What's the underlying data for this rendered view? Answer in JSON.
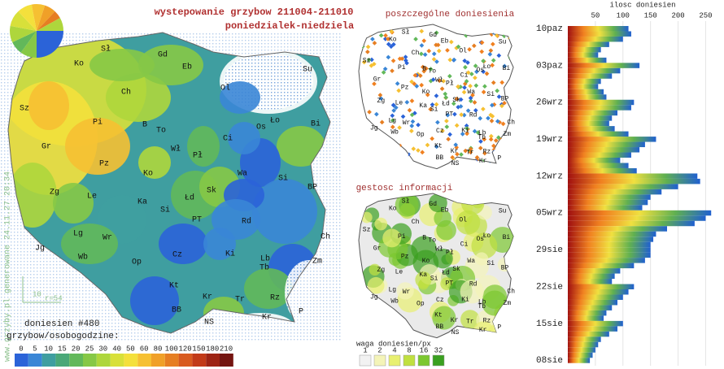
{
  "title": "wystepowanie grzybow 211004-211010",
  "subtitle": "poniedzialek-niedziela",
  "map": {
    "labels": [
      "Sł",
      "Gd",
      "Ko",
      "Eb",
      "Su",
      "Ch",
      "Ol",
      "Sz",
      "Pi",
      "B",
      "To",
      "Ło",
      "Bi",
      "Os",
      "Gr",
      "Wł",
      "Pł",
      "Ci",
      "Pz",
      "Ko",
      "Wa",
      "Si",
      "Zg",
      "Le",
      "Ka",
      "Łd",
      "Sk",
      "BP",
      "Si",
      "PT",
      "Rd",
      "Jg",
      "Lg",
      "Wr",
      "Ch",
      "Wb",
      "Op",
      "Cz",
      "Ki",
      "Zm",
      "Lb",
      "Kt",
      "Tb",
      "Kr",
      "Tr",
      "Rz",
      "BB",
      "NS",
      "P",
      "Kr"
    ],
    "scale_label": "10",
    "radius_label": "r=54",
    "report_count": "doniesien #480",
    "generated": "www.grzyby.pl generowane 24.11.27 20:34"
  },
  "legend": {
    "title": "grzybow/osobogodzine:",
    "values": [
      0,
      5,
      10,
      15,
      20,
      25,
      30,
      40,
      50,
      60,
      80,
      100,
      120,
      150,
      180,
      210
    ],
    "colors": [
      "#2b63d8",
      "#3a86d6",
      "#3f9ea0",
      "#4aa878",
      "#62b85a",
      "#86c846",
      "#aed63c",
      "#d8e03a",
      "#f4e03c",
      "#f6c032",
      "#f0a028",
      "#e67e22",
      "#d85a1e",
      "#c23a18",
      "#9e2414",
      "#741410"
    ]
  },
  "dots_map": {
    "title": "poszczególne doniesienia"
  },
  "density_map": {
    "title": "gestosc informacji",
    "legend_title": "waga doniesien/px",
    "legend_values": [
      1,
      2,
      4,
      8,
      16,
      32
    ],
    "legend_colors": [
      "#f2f2f2",
      "#f4f4b8",
      "#e8f070",
      "#c0e040",
      "#7cc830",
      "#3aa020"
    ]
  },
  "chart_data": {
    "type": "bar",
    "orientation": "horizontal",
    "x_label": "ilosc doniesien",
    "categories": [
      "10paz",
      null,
      null,
      null,
      null,
      null,
      null,
      "03paz",
      null,
      null,
      null,
      null,
      null,
      null,
      "26wrz",
      null,
      null,
      null,
      null,
      null,
      null,
      "19wrz",
      null,
      null,
      null,
      null,
      null,
      null,
      "12wrz",
      null,
      null,
      null,
      null,
      null,
      null,
      "05wrz",
      null,
      null,
      null,
      null,
      null,
      null,
      "29sie",
      null,
      null,
      null,
      null,
      null,
      null,
      "22sie",
      null,
      null,
      null,
      null,
      null,
      null,
      "15sie",
      null,
      null,
      null,
      null,
      null,
      null,
      "08sie"
    ],
    "values": [
      110,
      115,
      100,
      75,
      60,
      55,
      70,
      130,
      95,
      80,
      60,
      55,
      65,
      70,
      120,
      115,
      90,
      80,
      75,
      85,
      110,
      160,
      140,
      130,
      115,
      95,
      110,
      125,
      235,
      240,
      200,
      170,
      150,
      145,
      135,
      260,
      250,
      230,
      180,
      160,
      155,
      150,
      150,
      150,
      140,
      120,
      95,
      85,
      80,
      120,
      110,
      100,
      90,
      80,
      70,
      65,
      100,
      90,
      75,
      60,
      55,
      50,
      45,
      40
    ],
    "xlim": [
      0,
      270
    ],
    "xticks": [
      50,
      100,
      150,
      200,
      250
    ],
    "colors": [
      "#a01010",
      "#f08020",
      "#f0e040",
      "#60b050",
      "#2060d0"
    ]
  }
}
